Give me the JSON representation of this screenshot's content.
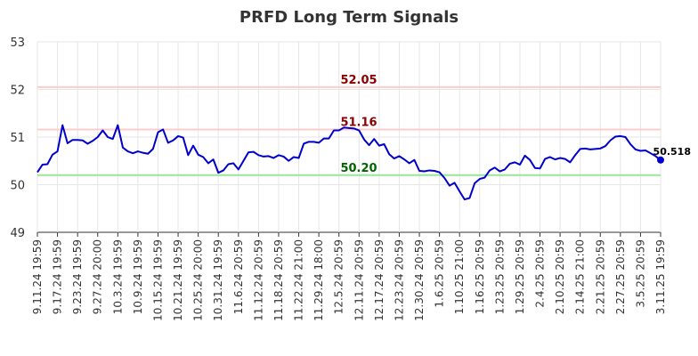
{
  "chart_data": {
    "type": "line",
    "title": "PRFD Long Term Signals",
    "xlabel": "",
    "ylabel": "",
    "ylim": [
      49,
      53
    ],
    "y_ticks": [
      "49",
      "50",
      "51",
      "52",
      "53"
    ],
    "grid": true,
    "x_tick_labels": [
      "9.11.24 19:59",
      "9.17.24 19:59",
      "9.23.24 19:59",
      "9.27.24 20:00",
      "10.3.24 19:59",
      "10.9.24 19:59",
      "10.15.24 19:59",
      "10.21.24 19:59",
      "10.25.24 20:00",
      "10.31.24 19:59",
      "11.6.24 20:59",
      "11.12.24 20:59",
      "11.18.24 20:59",
      "11.22.24 21:00",
      "11.29.24 18:00",
      "12.5.24 20:59",
      "12.11.24 20:59",
      "12.17.24 20:59",
      "12.23.24 20:59",
      "12.30.24 20:59",
      "1.6.25 20:59",
      "1.10.25 21:00",
      "1.16.25 20:59",
      "1.23.25 20:59",
      "1.29.25 20:59",
      "2.4.25 20:59",
      "2.10.25 20:59",
      "2.14.25 21:00",
      "2.21.25 20:59",
      "2.27.25 20:59",
      "3.5.25 20:59",
      "3.11.25 19:59"
    ],
    "series": [
      {
        "color": "#0000cc",
        "values": [
          50.26,
          50.42,
          50.43,
          50.63,
          50.7,
          51.25,
          50.87,
          50.94,
          50.94,
          50.93,
          50.86,
          50.92,
          51.0,
          51.14,
          51.0,
          50.96,
          51.25,
          50.78,
          50.7,
          50.66,
          50.7,
          50.67,
          50.65,
          50.75,
          51.1,
          51.16,
          50.88,
          50.93,
          51.02,
          50.99,
          50.62,
          50.82,
          50.63,
          50.58,
          50.45,
          50.53,
          50.25,
          50.3,
          50.43,
          50.45,
          50.32,
          50.5,
          50.68,
          50.69,
          50.62,
          50.59,
          50.6,
          50.56,
          50.62,
          50.59,
          50.5,
          50.58,
          50.56,
          50.86,
          50.9,
          50.9,
          50.88,
          50.97,
          50.97,
          51.14,
          51.14,
          51.2,
          51.19,
          51.18,
          51.14,
          50.95,
          50.83,
          50.96,
          50.82,
          50.85,
          50.64,
          50.55,
          50.6,
          50.53,
          50.45,
          50.52,
          50.29,
          50.28,
          50.3,
          50.29,
          50.26,
          50.14,
          49.98,
          50.04,
          49.86,
          49.69,
          49.72,
          50.03,
          50.12,
          50.15,
          50.3,
          50.36,
          50.28,
          50.32,
          50.44,
          50.47,
          50.42,
          50.61,
          50.52,
          50.35,
          50.34,
          50.54,
          50.58,
          50.53,
          50.56,
          50.54,
          50.47,
          50.62,
          50.75,
          50.76,
          50.74,
          50.75,
          50.76,
          50.81,
          50.93,
          51.01,
          51.02,
          51.0,
          50.85,
          50.74,
          50.71,
          50.72,
          50.66,
          50.6,
          50.518
        ]
      }
    ],
    "reference_lines": [
      {
        "value": 52.05,
        "label": "52.05",
        "line_color": "#ffcccc",
        "label_color": "#8b0000"
      },
      {
        "value": 51.16,
        "label": "51.16",
        "line_color": "#ffcccc",
        "label_color": "#8b0000"
      },
      {
        "value": 50.2,
        "label": "50.20",
        "line_color": "#99e699",
        "label_color": "#006400"
      }
    ],
    "last_value_label": "50.518"
  }
}
